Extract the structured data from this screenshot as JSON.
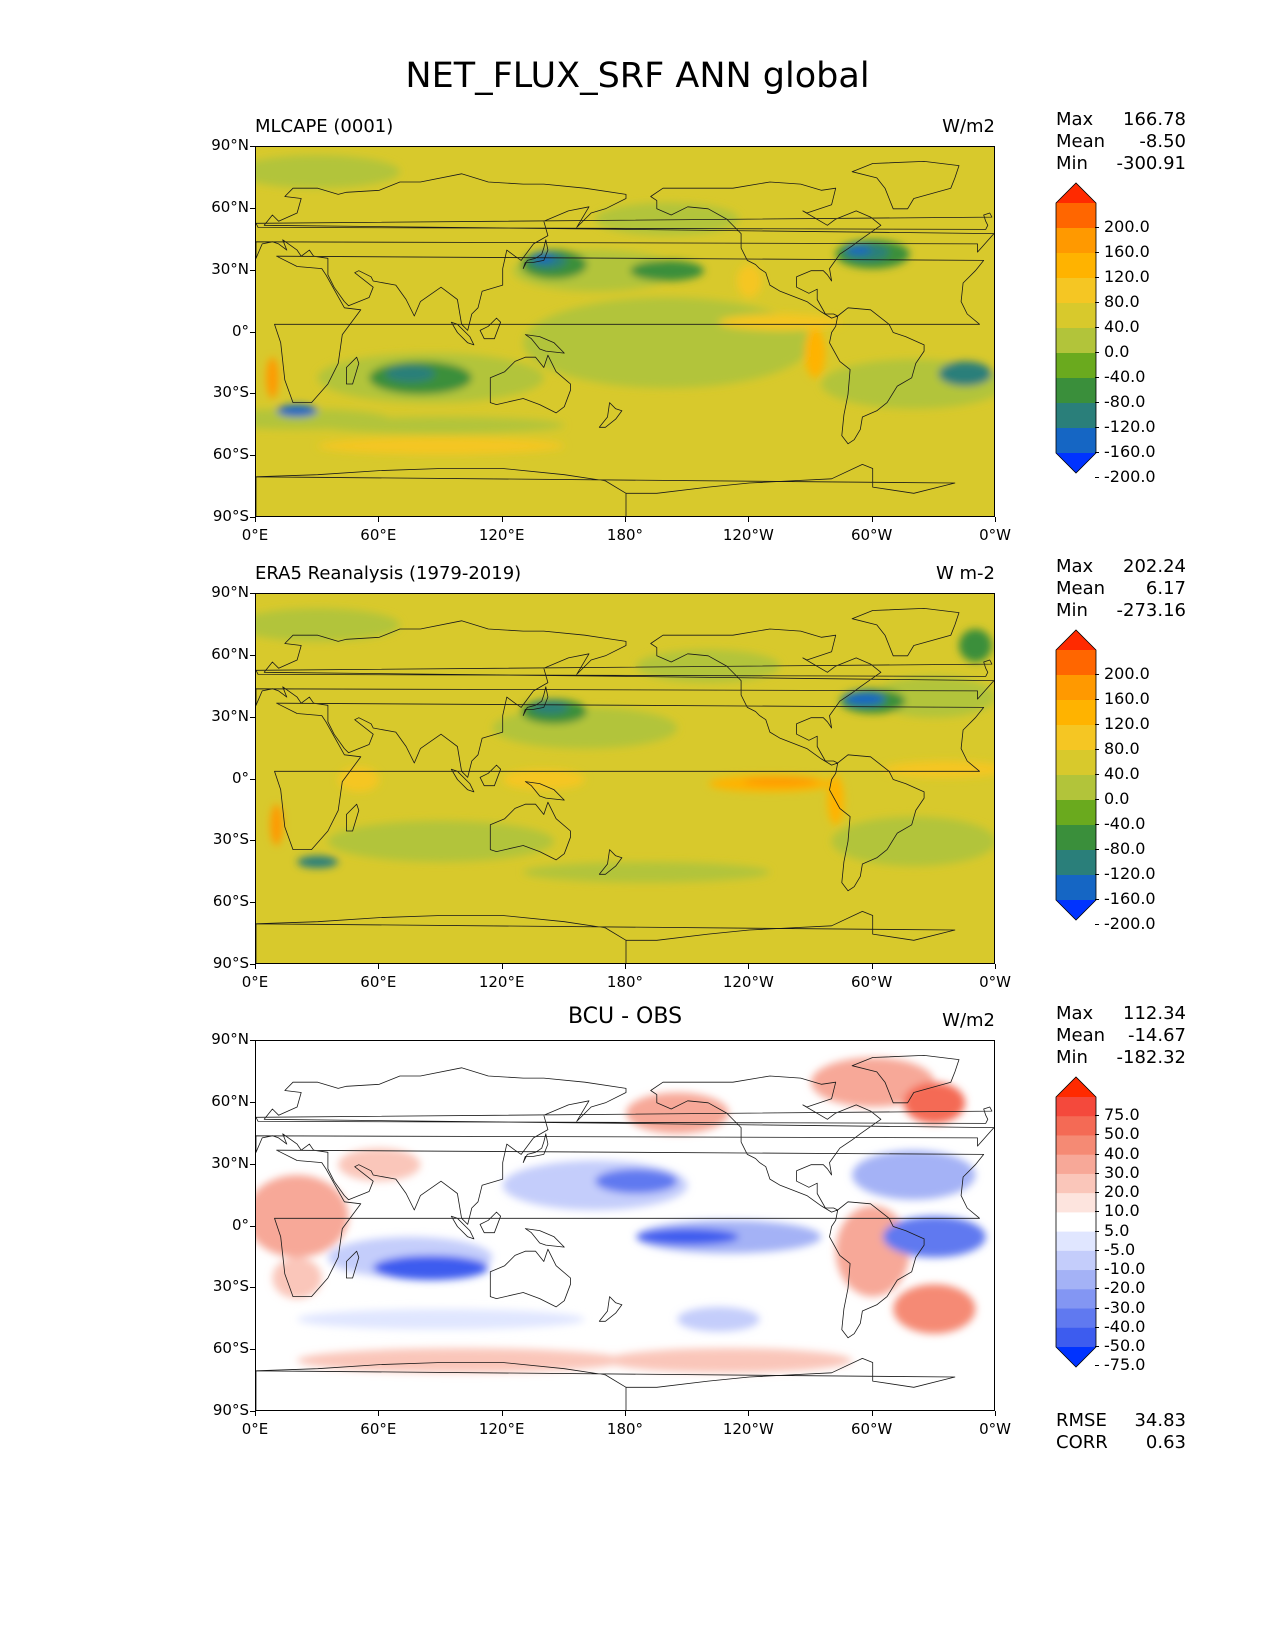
{
  "figure": {
    "title": "NET_FLUX_SRF ANN global"
  },
  "axes": {
    "lat_ticks": [
      "90°N",
      "60°N",
      "30°N",
      "0°",
      "30°S",
      "60°S",
      "90°S"
    ],
    "lon_ticks": [
      "0°E",
      "60°E",
      "120°E",
      "180°",
      "120°W",
      "60°W",
      "0°W"
    ]
  },
  "panels": [
    {
      "title": "MLCAPE (0001)",
      "units": "W/m2",
      "stats": {
        "max_label": "Max",
        "max": "166.78",
        "mean_label": "Mean",
        "mean": "-8.50",
        "min_label": "Min",
        "min": "-300.91"
      },
      "colorbar": {
        "labels": [
          "200.0",
          "160.0",
          "120.0",
          "80.0",
          "40.0",
          "0.0",
          "-40.0",
          "-80.0",
          "-120.0",
          "-160.0",
          "-200.0"
        ],
        "colors": [
          "#ff2a00",
          "#ff6600",
          "#ff9900",
          "#ffb300",
          "#f5c623",
          "#d8c92c",
          "#b2c43a",
          "#6aaa1e",
          "#3a8f3b",
          "#2a7f7a",
          "#1566c4",
          "#0033ff"
        ]
      },
      "metrics": null
    },
    {
      "title": "ERA5 Reanalysis (1979-2019)",
      "units": "W m-2",
      "stats": {
        "max_label": "Max",
        "max": "202.24",
        "mean_label": "Mean",
        "mean": "6.17",
        "min_label": "Min",
        "min": "-273.16"
      },
      "colorbar": {
        "labels": [
          "200.0",
          "160.0",
          "120.0",
          "80.0",
          "40.0",
          "0.0",
          "-40.0",
          "-80.0",
          "-120.0",
          "-160.0",
          "-200.0"
        ],
        "colors": [
          "#ff2a00",
          "#ff6600",
          "#ff9900",
          "#ffb300",
          "#f5c623",
          "#d8c92c",
          "#b2c43a",
          "#6aaa1e",
          "#3a8f3b",
          "#2a7f7a",
          "#1566c4",
          "#0033ff"
        ]
      },
      "metrics": null
    },
    {
      "title": "BCU - OBS",
      "units": "W/m2",
      "stats": {
        "max_label": "Max",
        "max": "112.34",
        "mean_label": "Mean",
        "mean": "-14.67",
        "min_label": "Min",
        "min": "-182.32"
      },
      "colorbar": {
        "labels": [
          "75.0",
          "50.0",
          "40.0",
          "30.0",
          "20.0",
          "10.0",
          "5.0",
          "-5.0",
          "-10.0",
          "-20.0",
          "-30.0",
          "-40.0",
          "-50.0",
          "-75.0"
        ],
        "colors": [
          "#ff2a00",
          "#f4493c",
          "#f46a55",
          "#f58a74",
          "#f7a898",
          "#fac6ba",
          "#fde4de",
          "#ffffff",
          "#e0e6ff",
          "#c4cdfb",
          "#a4b2f6",
          "#8396f3",
          "#6079f0",
          "#3d5cef",
          "#0033ff"
        ]
      },
      "metrics": {
        "rmse_label": "RMSE",
        "rmse": "34.83",
        "corr_label": "CORR",
        "corr": "0.63"
      }
    }
  ]
}
